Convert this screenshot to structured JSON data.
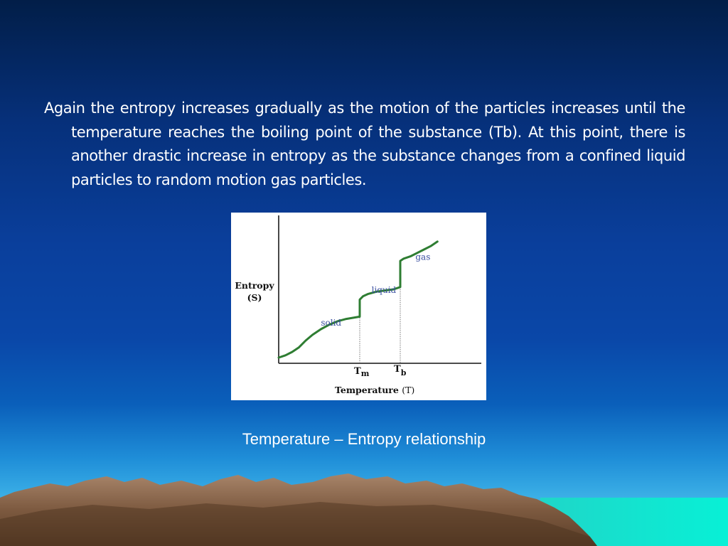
{
  "slide": {
    "body_text": "Again the entropy increases gradually as the motion of the particles  increases until the temperature reaches the boiling point of the  substance (Tb). At this point, there is another drastic increase in  entropy as the substance changes from a confined liquid particles to  random motion gas particles.",
    "caption": "Temperature – Entropy relationship"
  },
  "chart_data": {
    "type": "line",
    "ylabel_line1": "Entropy",
    "ylabel_line2": "(S)",
    "xlabel": "Temperature",
    "xlabel_unit": "(T)",
    "x_ticks": [
      {
        "main": "T",
        "sub": "m",
        "x": 0.48
      },
      {
        "main": "T",
        "sub": "b",
        "x": 0.72
      }
    ],
    "phase_labels": [
      {
        "text": "solid",
        "x": 0.25,
        "y": 0.03
      },
      {
        "text": "liquid",
        "x": 0.55,
        "y": 0.32
      },
      {
        "text": "gas",
        "x": 0.81,
        "y": 0.61
      }
    ],
    "series": [
      {
        "color": "#2e7d32",
        "points": [
          [
            0.0,
            -0.25
          ],
          [
            0.04,
            -0.23
          ],
          [
            0.08,
            -0.2
          ],
          [
            0.12,
            -0.16
          ],
          [
            0.16,
            -0.1
          ],
          [
            0.2,
            -0.05
          ],
          [
            0.25,
            0.0
          ],
          [
            0.3,
            0.04
          ],
          [
            0.35,
            0.07
          ],
          [
            0.4,
            0.09
          ],
          [
            0.44,
            0.1
          ],
          [
            0.48,
            0.11
          ],
          [
            0.48,
            0.26
          ],
          [
            0.5,
            0.29
          ],
          [
            0.53,
            0.31
          ],
          [
            0.58,
            0.33
          ],
          [
            0.63,
            0.34
          ],
          [
            0.68,
            0.35
          ],
          [
            0.72,
            0.37
          ],
          [
            0.72,
            0.6
          ],
          [
            0.74,
            0.62
          ],
          [
            0.78,
            0.64
          ],
          [
            0.82,
            0.67
          ],
          [
            0.86,
            0.7
          ],
          [
            0.9,
            0.73
          ],
          [
            0.94,
            0.77
          ]
        ]
      }
    ],
    "xlim": [
      0,
      1.2
    ],
    "ylim": [
      -0.3,
      1.0
    ],
    "grid": false,
    "legend": "none"
  }
}
